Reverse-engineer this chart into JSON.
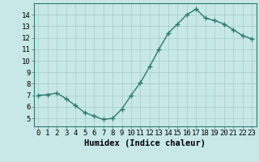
{
  "x": [
    0,
    1,
    2,
    3,
    4,
    5,
    6,
    7,
    8,
    9,
    10,
    11,
    12,
    13,
    14,
    15,
    16,
    17,
    18,
    19,
    20,
    21,
    22,
    23
  ],
  "y": [
    7.0,
    7.05,
    7.2,
    6.7,
    6.1,
    5.5,
    5.2,
    4.9,
    5.0,
    5.8,
    7.0,
    8.1,
    9.5,
    11.0,
    12.4,
    13.2,
    14.0,
    14.5,
    13.7,
    13.5,
    13.2,
    12.7,
    12.2,
    11.9
  ],
  "line_color": "#2d7a6e",
  "marker": "+",
  "marker_size": 4,
  "line_width": 1.0,
  "background_color": "#c8e8e8",
  "grid_color": "#aacece",
  "xlabel": "Humidex (Indice chaleur)",
  "xlabel_fontsize": 7.5,
  "xlim": [
    -0.5,
    23.5
  ],
  "ylim": [
    4.3,
    15.0
  ],
  "yticks": [
    5,
    6,
    7,
    8,
    9,
    10,
    11,
    12,
    13,
    14
  ],
  "xtick_labels": [
    "0",
    "1",
    "2",
    "3",
    "4",
    "5",
    "6",
    "7",
    "8",
    "9",
    "10",
    "11",
    "12",
    "13",
    "14",
    "15",
    "16",
    "17",
    "18",
    "19",
    "20",
    "21",
    "22",
    "23"
  ],
  "tick_fontsize": 6.5
}
